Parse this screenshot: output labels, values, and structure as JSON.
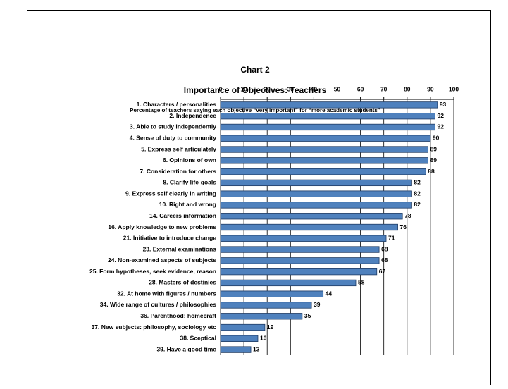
{
  "chart_data": {
    "type": "barh",
    "title": "Chart 2",
    "subtitle": "Importance of Objectives: Teachers",
    "caption": "Percentage of teachers saying each objective “very important” for “more academic students”",
    "categories": [
      "1. Characters / personalities",
      "2. Independence",
      "3. Able to study independently",
      "4. Sense of duty to community",
      "5. Express self articulately",
      "6. Opinions of own",
      "7. Consideration for others",
      "8. Clarify life-goals",
      "9. Express self clearly in writing",
      "10. Right and wrong",
      "14. Careers information",
      "16. Apply knowledge to new problems",
      "21. Initiative to introduce change",
      "23. External examinations",
      "24. Non-examined aspects of subjects",
      "25. Form hypotheses, seek evidence, reason",
      "28. Masters of destinies",
      "32. At home with figures / numbers",
      "34. Wide range of cultures / philosophies",
      "36. Parenthood: homecraft",
      "37. New subjects: philosophy, sociology etc",
      "38. Sceptical",
      "39. Have a good time"
    ],
    "values": [
      93,
      92,
      92,
      90,
      89,
      89,
      88,
      82,
      82,
      82,
      78,
      76,
      71,
      68,
      68,
      67,
      58,
      44,
      39,
      35,
      19,
      16,
      13
    ],
    "color": "#4f81bd",
    "xlim": [
      0,
      100
    ],
    "xticks": [
      0,
      10,
      20,
      30,
      40,
      50,
      60,
      70,
      80,
      90,
      100
    ],
    "grid": true
  }
}
